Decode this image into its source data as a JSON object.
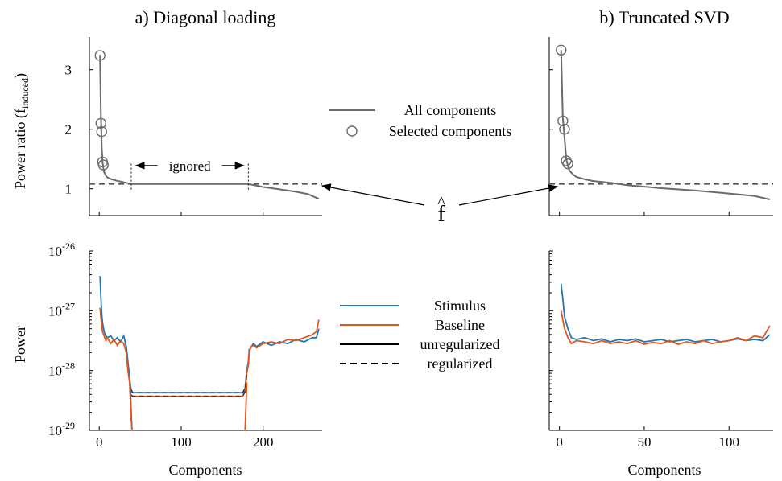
{
  "chart_data": [
    {
      "type": "line",
      "panel": "a-top",
      "title": "a) Diagonal loading",
      "xlabel": "",
      "ylabel": "Power ratio (f",
      "ylabel_sub": "induced",
      "ylabel_close": ")",
      "xlim": [
        -12,
        272
      ],
      "ylim": [
        0.55,
        3.55
      ],
      "yticks": [
        1,
        2,
        3
      ],
      "ytick_labels": [
        "1",
        "2",
        "3"
      ],
      "xticks": [
        0,
        100,
        200
      ],
      "series": [
        {
          "key": "all",
          "x": [
            1,
            2,
            3,
            4,
            5,
            6,
            8,
            10,
            15,
            20,
            30,
            39,
            60,
            100,
            150,
            182,
            200,
            220,
            240,
            255,
            268
          ],
          "y": [
            3.25,
            2.3,
            1.7,
            1.45,
            1.35,
            1.28,
            1.22,
            1.19,
            1.16,
            1.14,
            1.11,
            1.08,
            1.08,
            1.08,
            1.08,
            1.08,
            1.03,
            0.99,
            0.95,
            0.91,
            0.83
          ]
        },
        {
          "key": "selected",
          "x": [
            1,
            2,
            3,
            4,
            5
          ],
          "y": [
            3.24,
            2.1,
            1.96,
            1.45,
            1.4
          ]
        }
      ],
      "threshold": 1.08,
      "annotation": {
        "label": "ignored",
        "x_start": 39,
        "x_end": 182
      }
    },
    {
      "type": "line",
      "panel": "b-top",
      "title": "b) Truncated SVD",
      "xlabel": "",
      "ylabel": "",
      "xlim": [
        -6,
        126
      ],
      "ylim": [
        0.55,
        3.55
      ],
      "xticks": [
        0,
        50,
        100
      ],
      "series": [
        {
          "key": "all",
          "x": [
            1,
            2,
            3,
            4,
            5,
            6,
            8,
            10,
            15,
            20,
            30,
            40,
            60,
            80,
            100,
            115,
            124
          ],
          "y": [
            3.33,
            2.2,
            1.85,
            1.5,
            1.38,
            1.3,
            1.24,
            1.2,
            1.16,
            1.13,
            1.1,
            1.06,
            1.01,
            0.97,
            0.92,
            0.88,
            0.82
          ]
        },
        {
          "key": "selected",
          "x": [
            1,
            2,
            3,
            4,
            5
          ],
          "y": [
            3.33,
            2.14,
            2.0,
            1.47,
            1.42
          ]
        }
      ],
      "threshold": 1.08
    },
    {
      "type": "line",
      "panel": "a-bottom",
      "xlabel": "Components",
      "ylabel": "Power",
      "yscale": "log",
      "xlim": [
        -12,
        272
      ],
      "ylim_exp": [
        -29,
        -26
      ],
      "yticks_exp": [
        -29,
        -28,
        -27,
        -26
      ],
      "ytick_base": "10",
      "xticks": [
        0,
        100,
        200
      ],
      "xtick_labels": [
        "0",
        "100",
        "200"
      ],
      "series": [
        {
          "key": "stimulus",
          "x": [
            1,
            2,
            3,
            4,
            6,
            8,
            10,
            14,
            18,
            22,
            26,
            30,
            33,
            35,
            37,
            38,
            39,
            40,
            41,
            44,
            100,
            150,
            175,
            178,
            180,
            182,
            183,
            185,
            188,
            192,
            200,
            210,
            220,
            230,
            240,
            250,
            260,
            265,
            268
          ],
          "y_exp": [
            -26.42,
            -26.75,
            -27.05,
            -27.2,
            -27.35,
            -27.42,
            -27.45,
            -27.42,
            -27.5,
            -27.45,
            -27.52,
            -27.42,
            -27.6,
            -27.85,
            -28.1,
            -28.25,
            -28.32,
            -28.35,
            -28.37,
            -28.37,
            -28.37,
            -28.37,
            -28.37,
            -28.3,
            -28.0,
            -27.85,
            -27.65,
            -27.62,
            -27.55,
            -27.6,
            -27.52,
            -27.58,
            -27.52,
            -27.55,
            -27.48,
            -27.52,
            -27.45,
            -27.45,
            -27.3
          ]
        },
        {
          "key": "baseline",
          "x": [
            1,
            2,
            3,
            4,
            6,
            8,
            10,
            14,
            18,
            22,
            26,
            30,
            33,
            35,
            37,
            38,
            39,
            40,
            41,
            44,
            100,
            150,
            175,
            178,
            180,
            182,
            183,
            185,
            188,
            192,
            200,
            210,
            220,
            230,
            240,
            250,
            260,
            265,
            268
          ],
          "y_exp": [
            -26.95,
            -27.1,
            -27.25,
            -27.35,
            -27.42,
            -27.5,
            -27.45,
            -27.55,
            -27.48,
            -27.58,
            -27.5,
            -27.55,
            -27.7,
            -28.0,
            -28.2,
            -28.35,
            -28.42,
            -28.42,
            -28.43,
            -28.43,
            -28.43,
            -28.43,
            -28.43,
            -28.35,
            -28.05,
            -27.9,
            -27.7,
            -27.6,
            -27.58,
            -27.62,
            -27.55,
            -27.52,
            -27.55,
            -27.48,
            -27.5,
            -27.45,
            -27.4,
            -27.35,
            -27.15
          ]
        },
        {
          "key": "stimulus_unreg_dip",
          "x": [
            38,
            39,
            40
          ],
          "y_exp": [
            -28.3,
            -28.7,
            -29.0
          ]
        },
        {
          "key": "baseline_unreg_dip",
          "x": [
            37,
            38,
            39,
            40,
            178,
            179,
            180
          ],
          "y_exp": [
            -28.2,
            -28.5,
            -28.8,
            -29.0,
            -29.0,
            -28.6,
            -28.2
          ]
        }
      ]
    },
    {
      "type": "line",
      "panel": "b-bottom",
      "xlabel": "Components",
      "ylabel": "",
      "yscale": "log",
      "xlim": [
        -6,
        126
      ],
      "ylim_exp": [
        -29,
        -26
      ],
      "xticks": [
        0,
        50,
        100
      ],
      "xtick_labels": [
        "0",
        "50",
        "100"
      ],
      "series": [
        {
          "key": "stimulus",
          "x": [
            1,
            2,
            3,
            5,
            7,
            10,
            15,
            20,
            25,
            30,
            35,
            40,
            45,
            50,
            55,
            60,
            65,
            70,
            75,
            80,
            85,
            90,
            95,
            100,
            105,
            110,
            115,
            120,
            124
          ],
          "y_exp": [
            -26.55,
            -26.8,
            -27.1,
            -27.3,
            -27.45,
            -27.48,
            -27.45,
            -27.5,
            -27.47,
            -27.52,
            -27.48,
            -27.5,
            -27.47,
            -27.52,
            -27.5,
            -27.48,
            -27.52,
            -27.5,
            -27.48,
            -27.52,
            -27.5,
            -27.48,
            -27.52,
            -27.5,
            -27.47,
            -27.5,
            -27.48,
            -27.5,
            -27.4
          ]
        },
        {
          "key": "baseline",
          "x": [
            1,
            2,
            3,
            5,
            7,
            10,
            15,
            20,
            25,
            30,
            35,
            40,
            45,
            50,
            55,
            60,
            65,
            70,
            75,
            80,
            85,
            90,
            95,
            100,
            105,
            110,
            115,
            120,
            124
          ],
          "y_exp": [
            -27.0,
            -27.15,
            -27.3,
            -27.45,
            -27.55,
            -27.5,
            -27.52,
            -27.55,
            -27.5,
            -27.55,
            -27.52,
            -27.55,
            -27.5,
            -27.56,
            -27.53,
            -27.55,
            -27.5,
            -27.56,
            -27.52,
            -27.55,
            -27.5,
            -27.55,
            -27.52,
            -27.5,
            -27.45,
            -27.5,
            -27.42,
            -27.45,
            -27.25
          ]
        }
      ]
    }
  ],
  "legend_top": {
    "all_components": "All components",
    "selected_components": "Selected components"
  },
  "legend_bottom": {
    "stimulus": "Stimulus",
    "baseline": "Baseline",
    "unregularized": "unregularized",
    "regularized": "regularized"
  },
  "annotation_fhat": "f",
  "annotation_fhat_hat": "^",
  "colors": {
    "all_components": "#6b6b6b",
    "selected_marker": "#6b6b6b",
    "threshold": "#555555",
    "stimulus": "#1f77b4",
    "baseline": "#e0561d",
    "unregularized": "#000000",
    "regularized": "#000000"
  }
}
